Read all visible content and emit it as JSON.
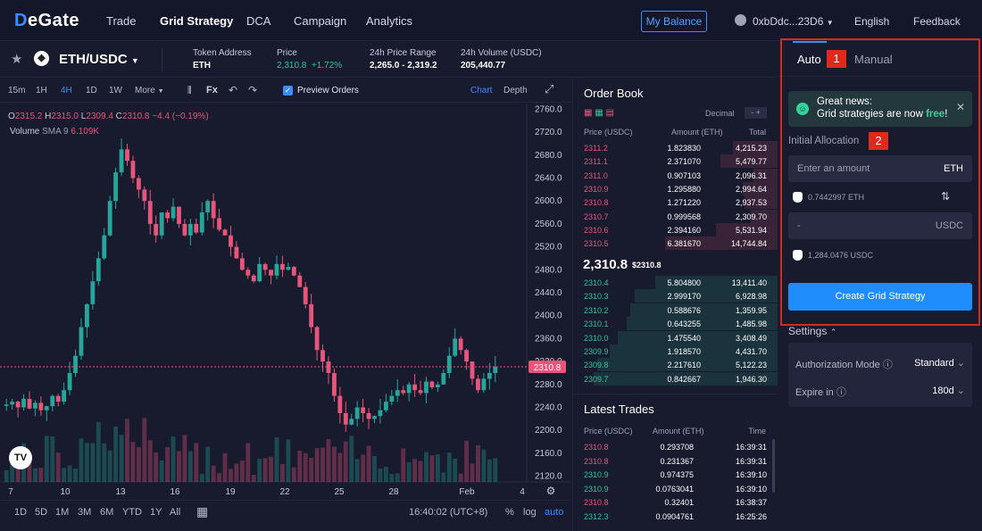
{
  "nav": {
    "logo_prefix": "D",
    "logo_rest": "eGate",
    "items": [
      "Trade",
      "Grid Strategy",
      "DCA",
      "Campaign",
      "Analytics"
    ],
    "my_balance": "My Balance",
    "wallet": "0xbDdc...23D6",
    "language": "English",
    "feedback": "Feedback"
  },
  "symbol": {
    "pair": "ETH/USDC",
    "coin_glyph": "◆",
    "stats": [
      {
        "label": "Token Address",
        "value": "ETH"
      },
      {
        "label": "Price",
        "value": "2,310.8",
        "change": "+1.72%"
      },
      {
        "label": "24h Price Range",
        "value": "2,265.0 - 2,319.2"
      },
      {
        "label": "24h Volume (USDC)",
        "value": "205,440.77"
      }
    ]
  },
  "toolbar": {
    "intervals": [
      "15m",
      "1H",
      "4H",
      "1D",
      "1W"
    ],
    "selected_interval": "4H",
    "more": "More",
    "fx": "Fx",
    "preview_orders": "Preview Orders",
    "chart": "Chart",
    "depth": "Depth"
  },
  "chart_legend": {
    "o": "2315.2",
    "h": "2315.0",
    "l": "2309.4",
    "c": "2310.8",
    "change": "−4.4 (−0.19%)",
    "volume_label": "Volume",
    "sma": "SMA 9",
    "sma_value": "6.109K"
  },
  "chart_data": {
    "type": "candlestick",
    "current_price": 2310.8,
    "y_ticks": [
      2760.0,
      2720.0,
      2680.0,
      2640.0,
      2600.0,
      2560.0,
      2520.0,
      2480.0,
      2440.0,
      2400.0,
      2360.0,
      2320.0,
      2280.0,
      2240.0,
      2200.0,
      2160.0,
      2120.0
    ],
    "x_ticks": [
      "7",
      "10",
      "13",
      "16",
      "19",
      "22",
      "25",
      "28",
      "Feb",
      "4"
    ],
    "ylim": [
      2110,
      2770
    ],
    "close_path": [
      2245,
      2250,
      2240,
      2255,
      2238,
      2248,
      2235,
      2242,
      2260,
      2250,
      2270,
      2300,
      2330,
      2380,
      2420,
      2460,
      2500,
      2540,
      2600,
      2650,
      2690,
      2670,
      2640,
      2620,
      2600,
      2560,
      2540,
      2580,
      2570,
      2590,
      2560,
      2540,
      2560,
      2545,
      2580,
      2600,
      2570,
      2550,
      2540,
      2520,
      2500,
      2480,
      2470,
      2460,
      2490,
      2480,
      2470,
      2490,
      2480,
      2485,
      2470,
      2450,
      2420,
      2380,
      2340,
      2320,
      2300,
      2260,
      2230,
      2210,
      2220,
      2240,
      2230,
      2220,
      2225,
      2235,
      2250,
      2260,
      2270,
      2265,
      2280,
      2270,
      2265,
      2285,
      2275,
      2280,
      2300,
      2330,
      2360,
      2340,
      2320,
      2290,
      2270,
      2290,
      2300,
      2310.8
    ]
  },
  "bottom_bar": {
    "ranges": [
      "1D",
      "5D",
      "1M",
      "3M",
      "6M",
      "YTD",
      "1Y",
      "All"
    ],
    "time": "16:40:02 (UTC+8)",
    "percent": "%",
    "log": "log",
    "auto": "auto"
  },
  "order_book": {
    "title": "Order Book",
    "decimal": "Decimal",
    "decimal_value": "-",
    "headers": [
      "Price (USDC)",
      "Amount (ETH)",
      "Total"
    ],
    "asks": [
      {
        "price": "2311.2",
        "amount": "1.823830",
        "total": "4,215.23",
        "depth": 0.22
      },
      {
        "price": "2311.1",
        "amount": "2.371070",
        "total": "5,479.77",
        "depth": 0.28
      },
      {
        "price": "2311.0",
        "amount": "0.907103",
        "total": "2,096.31",
        "depth": 0.12
      },
      {
        "price": "2310.9",
        "amount": "1.295880",
        "total": "2,994.64",
        "depth": 0.17
      },
      {
        "price": "2310.8",
        "amount": "1.271220",
        "total": "2,937.53",
        "depth": 0.16
      },
      {
        "price": "2310.7",
        "amount": "0.999568",
        "total": "2,309.70",
        "depth": 0.13
      },
      {
        "price": "2310.6",
        "amount": "2.394160",
        "total": "5,531.94",
        "depth": 0.3
      },
      {
        "price": "2310.5",
        "amount": "6.381670",
        "total": "14,744.84",
        "depth": 0.55
      }
    ],
    "mid_price": "2,310.8",
    "mid_usd": "$2310.8",
    "bids": [
      {
        "price": "2310.4",
        "amount": "5.804800",
        "total": "13,411.40",
        "depth": 0.6
      },
      {
        "price": "2310.3",
        "amount": "2.999170",
        "total": "6,928.98",
        "depth": 0.7
      },
      {
        "price": "2310.2",
        "amount": "0.588676",
        "total": "1,359.95",
        "depth": 0.72
      },
      {
        "price": "2310.1",
        "amount": "0.643255",
        "total": "1,485.98",
        "depth": 0.74
      },
      {
        "price": "2310.0",
        "amount": "1.475540",
        "total": "3,408.49",
        "depth": 0.78
      },
      {
        "price": "2309.9",
        "amount": "1.918570",
        "total": "4,431.70",
        "depth": 0.82
      },
      {
        "price": "2309.8",
        "amount": "2.217610",
        "total": "5,122.23",
        "depth": 0.88
      },
      {
        "price": "2309.7",
        "amount": "0.842667",
        "total": "1,946.30",
        "depth": 0.9
      }
    ]
  },
  "latest_trades": {
    "title": "Latest Trades",
    "headers": [
      "Price (USDC)",
      "Amount (ETH)",
      "Time"
    ],
    "rows": [
      {
        "price": "2310.8",
        "amount": "0.293708",
        "time": "16:39:31",
        "side": "sell"
      },
      {
        "price": "2310.8",
        "amount": "0.231367",
        "time": "16:39:31",
        "side": "sell"
      },
      {
        "price": "2310.9",
        "amount": "0.974375",
        "time": "16:39:10",
        "side": "buy"
      },
      {
        "price": "2310.9",
        "amount": "0.0763041",
        "time": "16:39:10",
        "side": "buy"
      },
      {
        "price": "2310.8",
        "amount": "0.32401",
        "time": "16:38:37",
        "side": "sell"
      },
      {
        "price": "2312.3",
        "amount": "0.0904761",
        "time": "16:25:26",
        "side": "buy"
      }
    ]
  },
  "panel": {
    "tab_auto": "Auto",
    "tab_manual": "Manual",
    "badge1": "1",
    "badge2": "2",
    "banner_line1": "Great news:",
    "banner_line2_pre": "Grid strategies are now ",
    "banner_free": "free",
    "banner_line2_post": "!",
    "alloc_label": "Initial Allocation",
    "eth_placeholder": "Enter an amount",
    "eth_unit": "ETH",
    "eth_balance": "0.7442997 ETH",
    "usdc_value": "-",
    "usdc_unit": "USDC",
    "usdc_balance": "1,284.0476 USDC",
    "cta": "Create Grid Strategy",
    "settings": "Settings",
    "auth_label": "Authorization Mode ⓘ",
    "auth_value": "Standard",
    "expire_label": "Expire in ⓘ",
    "expire_value": "180d"
  }
}
